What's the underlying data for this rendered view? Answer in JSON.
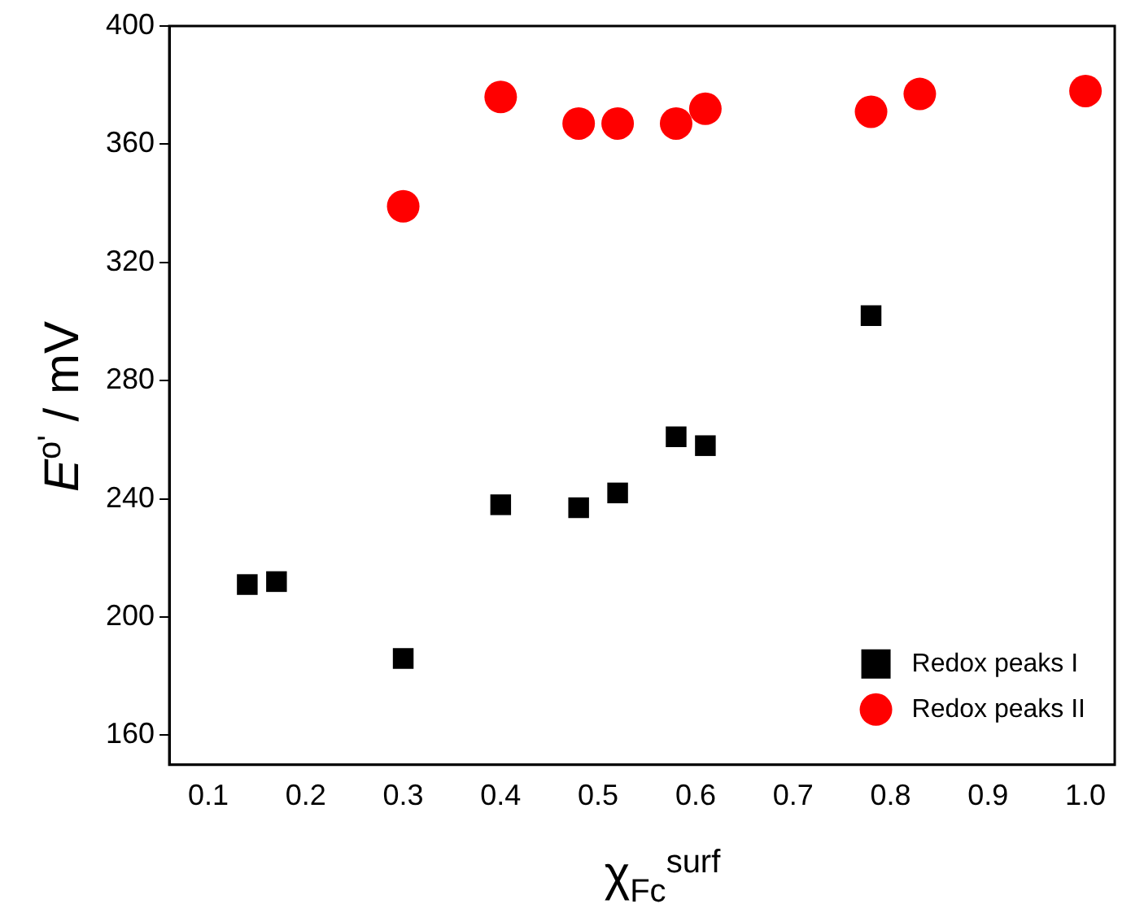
{
  "chart_data": {
    "type": "scatter",
    "xlabel": "χ$_{Fc}$$^{surf}$",
    "ylabel": "E$^{o'}$ / mV",
    "xlim": [
      0.06,
      1.03
    ],
    "xticks": [
      0.1,
      0.2,
      0.3,
      0.4,
      0.5,
      0.6,
      0.7,
      0.8,
      0.9,
      {
        "value": 1,
        "label": "1.0"
      }
    ],
    "ylim": [
      150,
      400
    ],
    "yticks": [
      160,
      200,
      240,
      280,
      320,
      360,
      400
    ],
    "grid": false,
    "legend": "bottom right",
    "series": [
      {
        "name": "Redox peaks I",
        "color": "#000000",
        "marker": "square",
        "x": [
          0.14,
          0.17,
          0.3,
          0.4,
          0.48,
          0.52,
          0.58,
          0.61,
          0.78
        ],
        "values": [
          211,
          212,
          186,
          238,
          237,
          242,
          261,
          258,
          302
        ]
      },
      {
        "name": "Redox peaks II",
        "color": "#ff0000",
        "marker": "circle",
        "x": [
          0.3,
          0.4,
          0.48,
          0.52,
          0.58,
          0.61,
          0.78,
          0.83,
          1.0
        ],
        "values": [
          339,
          376,
          367,
          367,
          367,
          372,
          371,
          377,
          378
        ]
      }
    ]
  }
}
